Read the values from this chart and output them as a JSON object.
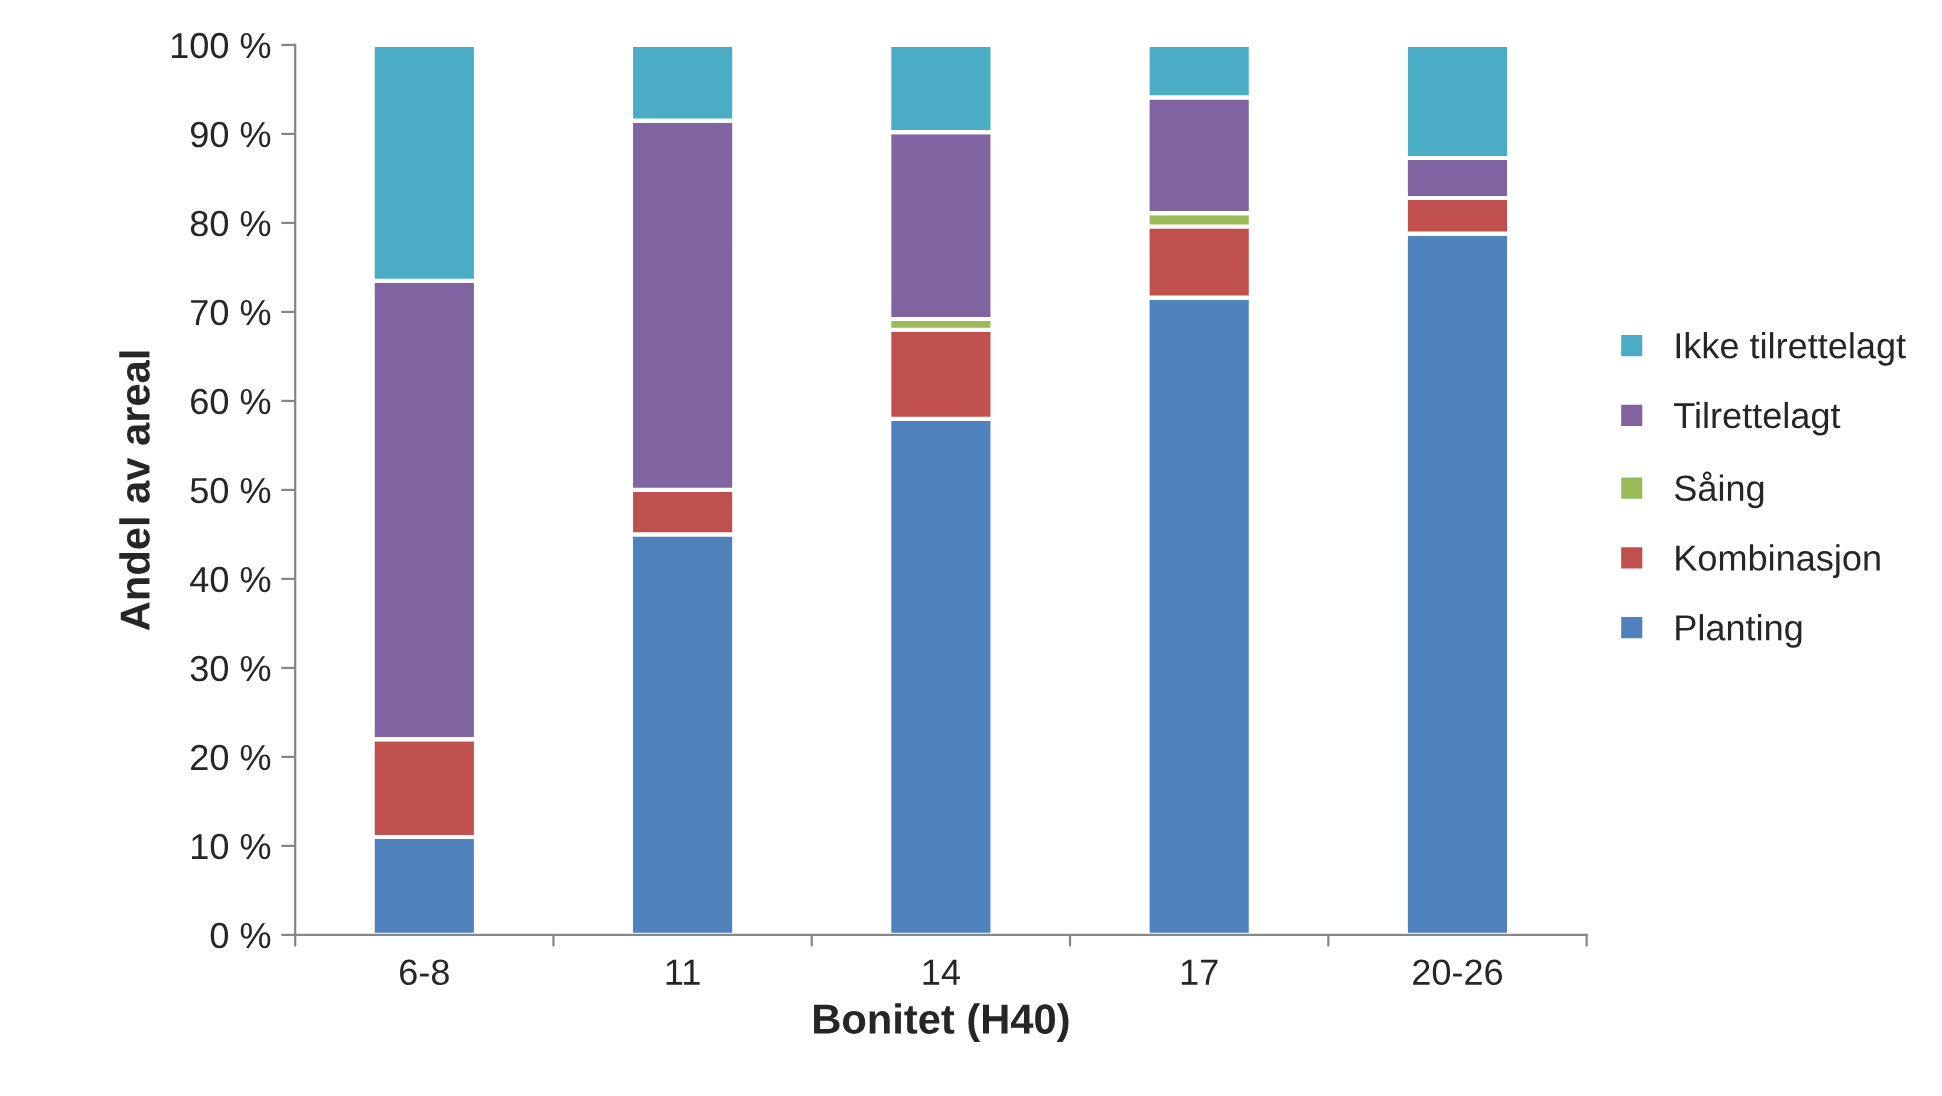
{
  "chart_data": {
    "type": "bar",
    "stacked": true,
    "xlabel": "Bonitet (H40)",
    "ylabel": "Andel av areal",
    "categories": [
      "6-8",
      "11",
      "14",
      "17",
      "20-26"
    ],
    "series": [
      {
        "name": "Planting",
        "color": "#4f81bd",
        "values": [
          11,
          45,
          58,
          71.6,
          78.8
        ]
      },
      {
        "name": "Kombinasjon",
        "color": "#c0504d",
        "values": [
          11,
          5,
          10,
          8,
          4
        ]
      },
      {
        "name": "Såing",
        "color": "#9bbb59",
        "values": [
          0,
          0,
          1.2,
          1.5,
          0
        ]
      },
      {
        "name": "Tilrettelagt",
        "color": "#8064a2",
        "values": [
          51.5,
          41.5,
          21,
          13,
          4.5
        ]
      },
      {
        "name": "Ikke tilrettelagt",
        "color": "#4bacc6",
        "values": [
          26.5,
          8.5,
          9.8,
          5.9,
          12.7
        ]
      }
    ],
    "ylim": [
      0,
      100
    ],
    "yticks": [
      {
        "value": 0,
        "label": "0 %"
      },
      {
        "value": 10,
        "label": "10 %"
      },
      {
        "value": 20,
        "label": "20 %"
      },
      {
        "value": 30,
        "label": "30 %"
      },
      {
        "value": 40,
        "label": "40 %"
      },
      {
        "value": 50,
        "label": "50 %"
      },
      {
        "value": 60,
        "label": "60 %"
      },
      {
        "value": 70,
        "label": "70 %"
      },
      {
        "value": 80,
        "label": "80 %"
      },
      {
        "value": 90,
        "label": "90 %"
      },
      {
        "value": 100,
        "label": "100 %"
      }
    ],
    "legend": "right",
    "grid": false
  }
}
